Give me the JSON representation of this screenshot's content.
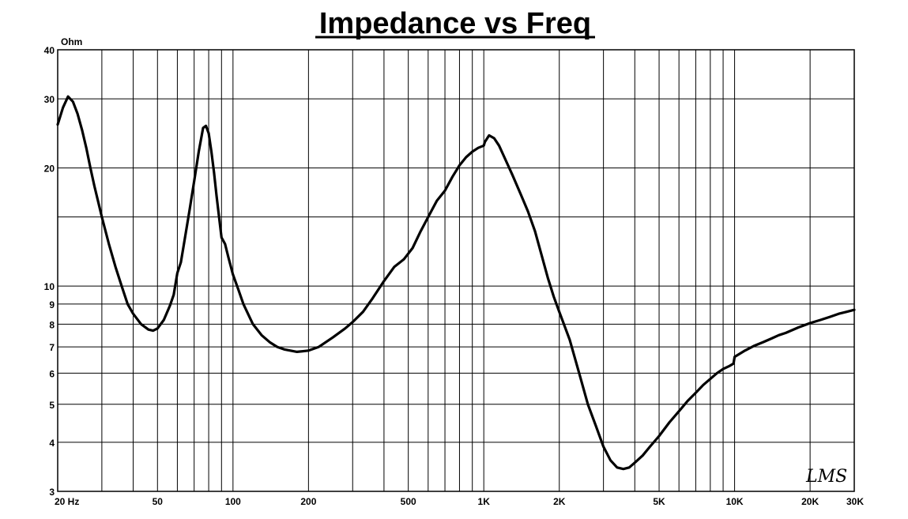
{
  "chart_data": {
    "type": "line",
    "title": "Impedance vs Freq",
    "ylabel": "Ohm",
    "xscale": "log",
    "yscale": "log",
    "xlim": [
      20,
      30000
    ],
    "ylim": [
      3,
      40
    ],
    "grid": true,
    "signature": "LMS",
    "x_ticks": [
      {
        "value": 20,
        "label": "20  Hz"
      },
      {
        "value": 50,
        "label": "50"
      },
      {
        "value": 100,
        "label": "100"
      },
      {
        "value": 200,
        "label": "200"
      },
      {
        "value": 500,
        "label": "500"
      },
      {
        "value": 1000,
        "label": "1K"
      },
      {
        "value": 2000,
        "label": "2K"
      },
      {
        "value": 5000,
        "label": "5K"
      },
      {
        "value": 10000,
        "label": "10K"
      },
      {
        "value": 20000,
        "label": "20K"
      },
      {
        "value": 30000,
        "label": "30K"
      }
    ],
    "y_ticks": [
      {
        "value": 3,
        "label": "3"
      },
      {
        "value": 4,
        "label": "4"
      },
      {
        "value": 5,
        "label": "5"
      },
      {
        "value": 6,
        "label": "6"
      },
      {
        "value": 7,
        "label": "7"
      },
      {
        "value": 8,
        "label": "8"
      },
      {
        "value": 9,
        "label": "9"
      },
      {
        "value": 10,
        "label": "10"
      },
      {
        "value": 20,
        "label": "20"
      },
      {
        "value": 30,
        "label": "30"
      },
      {
        "value": 40,
        "label": "40"
      }
    ],
    "series": [
      {
        "color": "#000000",
        "points": [
          [
            20,
            25.8
          ],
          [
            21,
            28.5
          ],
          [
            22,
            30.4
          ],
          [
            23,
            29.5
          ],
          [
            24,
            27.5
          ],
          [
            25,
            25.0
          ],
          [
            26,
            22.5
          ],
          [
            27,
            20.0
          ],
          [
            28,
            18.0
          ],
          [
            30,
            15.0
          ],
          [
            32,
            12.8
          ],
          [
            34,
            11.2
          ],
          [
            36,
            10.0
          ],
          [
            38,
            9.0
          ],
          [
            40,
            8.5
          ],
          [
            43,
            8.0
          ],
          [
            46,
            7.75
          ],
          [
            48,
            7.7
          ],
          [
            50,
            7.8
          ],
          [
            53,
            8.2
          ],
          [
            56,
            8.9
          ],
          [
            58,
            9.5
          ],
          [
            60,
            10.8
          ],
          [
            62,
            11.5
          ],
          [
            64,
            13.0
          ],
          [
            67,
            15.5
          ],
          [
            70,
            18.5
          ],
          [
            73,
            22.0
          ],
          [
            76,
            25.3
          ],
          [
            78,
            25.6
          ],
          [
            80,
            24.5
          ],
          [
            82,
            22.0
          ],
          [
            84,
            19.5
          ],
          [
            86,
            17.0
          ],
          [
            88,
            15.0
          ],
          [
            90,
            13.3
          ],
          [
            93,
            12.8
          ],
          [
            96,
            11.8
          ],
          [
            100,
            10.7
          ],
          [
            105,
            9.8
          ],
          [
            110,
            9.0
          ],
          [
            120,
            8.0
          ],
          [
            130,
            7.5
          ],
          [
            140,
            7.2
          ],
          [
            150,
            7.0
          ],
          [
            160,
            6.9
          ],
          [
            180,
            6.8
          ],
          [
            200,
            6.85
          ],
          [
            220,
            7.0
          ],
          [
            250,
            7.4
          ],
          [
            280,
            7.8
          ],
          [
            300,
            8.1
          ],
          [
            330,
            8.6
          ],
          [
            360,
            9.3
          ],
          [
            400,
            10.3
          ],
          [
            440,
            11.2
          ],
          [
            480,
            11.7
          ],
          [
            520,
            12.5
          ],
          [
            560,
            13.8
          ],
          [
            600,
            15.0
          ],
          [
            650,
            16.5
          ],
          [
            700,
            17.5
          ],
          [
            750,
            19.0
          ],
          [
            800,
            20.3
          ],
          [
            850,
            21.3
          ],
          [
            900,
            22.0
          ],
          [
            950,
            22.5
          ],
          [
            1000,
            22.8
          ],
          [
            1010,
            23.3
          ],
          [
            1050,
            24.2
          ],
          [
            1100,
            23.8
          ],
          [
            1150,
            22.8
          ],
          [
            1200,
            21.5
          ],
          [
            1300,
            19.2
          ],
          [
            1400,
            17.2
          ],
          [
            1500,
            15.5
          ],
          [
            1600,
            13.8
          ],
          [
            1700,
            12.0
          ],
          [
            1800,
            10.5
          ],
          [
            1900,
            9.4
          ],
          [
            2000,
            8.6
          ],
          [
            2200,
            7.3
          ],
          [
            2400,
            6.0
          ],
          [
            2600,
            5.0
          ],
          [
            2800,
            4.4
          ],
          [
            3000,
            3.9
          ],
          [
            3200,
            3.6
          ],
          [
            3400,
            3.45
          ],
          [
            3600,
            3.42
          ],
          [
            3800,
            3.45
          ],
          [
            4000,
            3.55
          ],
          [
            4300,
            3.7
          ],
          [
            4600,
            3.9
          ],
          [
            5000,
            4.15
          ],
          [
            5500,
            4.5
          ],
          [
            6000,
            4.8
          ],
          [
            6500,
            5.1
          ],
          [
            7000,
            5.35
          ],
          [
            7500,
            5.6
          ],
          [
            8000,
            5.8
          ],
          [
            8500,
            6.0
          ],
          [
            9000,
            6.15
          ],
          [
            9500,
            6.25
          ],
          [
            9900,
            6.35
          ],
          [
            10000,
            6.6
          ],
          [
            11000,
            6.85
          ],
          [
            12000,
            7.05
          ],
          [
            13000,
            7.2
          ],
          [
            14000,
            7.35
          ],
          [
            15000,
            7.5
          ],
          [
            16000,
            7.6
          ],
          [
            18000,
            7.85
          ],
          [
            20000,
            8.05
          ],
          [
            22000,
            8.2
          ],
          [
            24000,
            8.35
          ],
          [
            26000,
            8.5
          ],
          [
            28000,
            8.6
          ],
          [
            30000,
            8.7
          ]
        ]
      }
    ]
  }
}
